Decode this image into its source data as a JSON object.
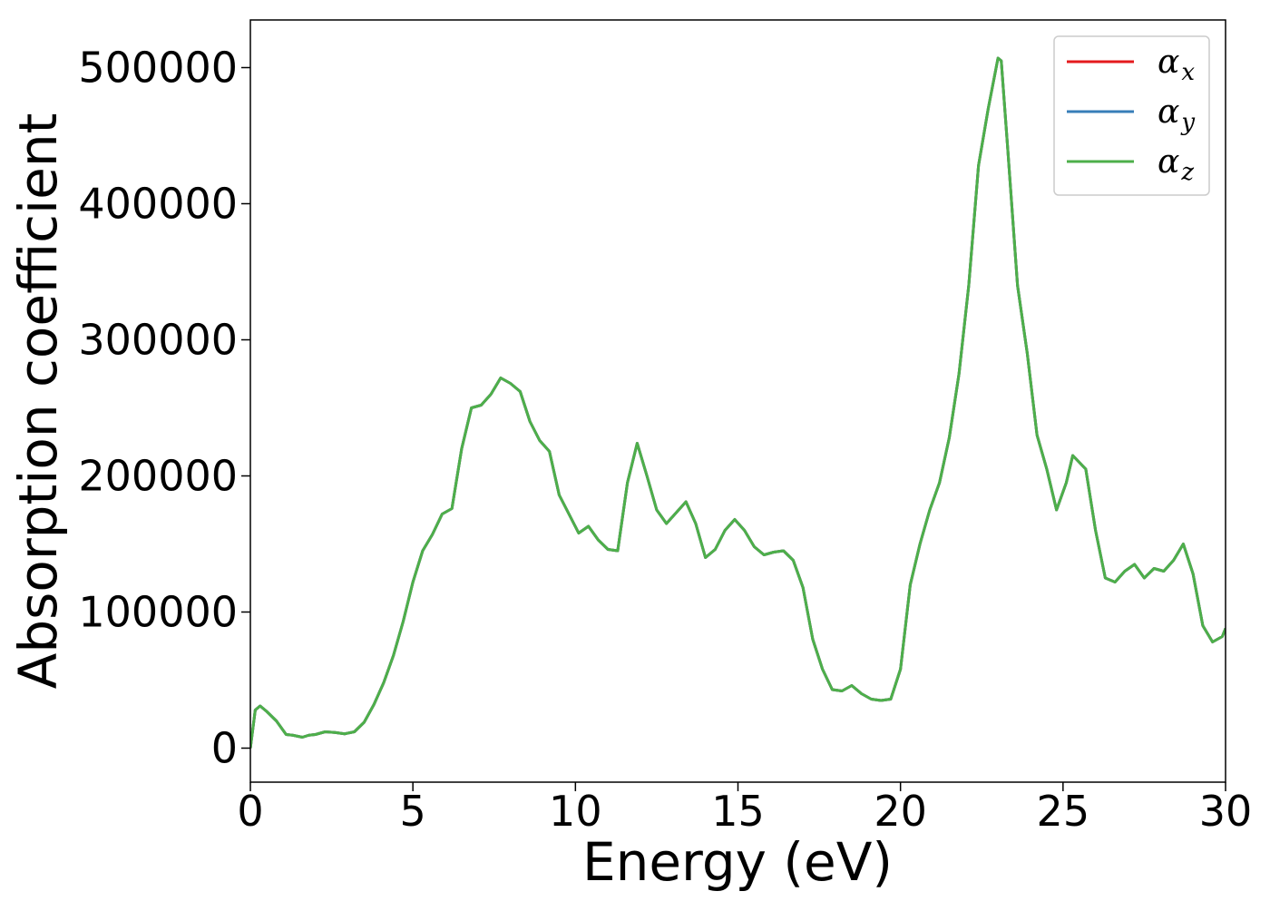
{
  "chart_data": {
    "type": "line",
    "title": "",
    "xlabel": "Energy (eV)",
    "ylabel": "Absorption coefficient",
    "xlim": [
      0,
      30
    ],
    "ylim": [
      -25000,
      535000
    ],
    "xticks": [
      0,
      5,
      10,
      15,
      20,
      25,
      30
    ],
    "yticks": [
      0,
      100000,
      200000,
      300000,
      400000,
      500000
    ],
    "xtick_labels": [
      "0",
      "5",
      "10",
      "15",
      "20",
      "25",
      "30"
    ],
    "ytick_labels": [
      "0",
      "100000",
      "200000",
      "300000",
      "400000",
      "500000"
    ],
    "grid": false,
    "legend_position": "top-right",
    "x": [
      0,
      0.15,
      0.3,
      0.5,
      0.8,
      1.1,
      1.3,
      1.6,
      1.8,
      2.0,
      2.3,
      2.6,
      2.9,
      3.2,
      3.5,
      3.8,
      4.1,
      4.4,
      4.7,
      5.0,
      5.3,
      5.6,
      5.9,
      6.2,
      6.5,
      6.8,
      7.1,
      7.4,
      7.7,
      8.0,
      8.3,
      8.6,
      8.9,
      9.2,
      9.5,
      9.8,
      10.1,
      10.4,
      10.7,
      11.0,
      11.3,
      11.6,
      11.9,
      12.2,
      12.5,
      12.8,
      13.1,
      13.4,
      13.7,
      14.0,
      14.3,
      14.6,
      14.9,
      15.2,
      15.5,
      15.8,
      16.1,
      16.4,
      16.7,
      17.0,
      17.3,
      17.6,
      17.9,
      18.2,
      18.5,
      18.8,
      19.1,
      19.4,
      19.7,
      20.0,
      20.3,
      20.6,
      20.9,
      21.2,
      21.5,
      21.8,
      22.1,
      22.4,
      22.7,
      23.0,
      23.1,
      23.3,
      23.6,
      23.9,
      24.2,
      24.5,
      24.8,
      25.1,
      25.3,
      25.5,
      25.7,
      26.0,
      26.3,
      26.6,
      26.9,
      27.2,
      27.5,
      27.8,
      28.1,
      28.4,
      28.7,
      29.0,
      29.3,
      29.6,
      29.9,
      30.0
    ],
    "series": [
      {
        "name": "αx",
        "color": "#e41a1c",
        "y": [
          0,
          28000,
          31000,
          27000,
          20000,
          10000,
          9500,
          8000,
          9500,
          10000,
          12000,
          11500,
          10500,
          12000,
          19000,
          32000,
          48000,
          68000,
          93000,
          122000,
          145000,
          157000,
          172000,
          176000,
          220000,
          250000,
          252000,
          260000,
          272000,
          268000,
          262000,
          240000,
          226000,
          218000,
          186000,
          172000,
          158000,
          163000,
          153000,
          146000,
          145000,
          195000,
          224000,
          200000,
          175000,
          165000,
          173000,
          181000,
          165000,
          140000,
          146000,
          160000,
          168000,
          160000,
          148000,
          142000,
          144000,
          145000,
          138000,
          118000,
          80000,
          58000,
          43000,
          42000,
          46000,
          40000,
          36000,
          35000,
          36000,
          58000,
          120000,
          150000,
          175000,
          195000,
          228000,
          275000,
          340000,
          428000,
          470000,
          507000,
          505000,
          440000,
          340000,
          290000,
          230000,
          205000,
          175000,
          195000,
          215000,
          210000,
          205000,
          160000,
          125000,
          122000,
          130000,
          135000,
          125000,
          132000,
          130000,
          138000,
          150000,
          128000,
          90000,
          78000,
          82000,
          88000
        ]
      },
      {
        "name": "αy",
        "color": "#377eb8",
        "y": [
          0,
          28000,
          31000,
          27000,
          20000,
          10000,
          9500,
          8000,
          9500,
          10000,
          12000,
          11500,
          10500,
          12000,
          19000,
          32000,
          48000,
          68000,
          93000,
          122000,
          145000,
          157000,
          172000,
          176000,
          220000,
          250000,
          252000,
          260000,
          272000,
          268000,
          262000,
          240000,
          226000,
          218000,
          186000,
          172000,
          158000,
          163000,
          153000,
          146000,
          145000,
          195000,
          224000,
          200000,
          175000,
          165000,
          173000,
          181000,
          165000,
          140000,
          146000,
          160000,
          168000,
          160000,
          148000,
          142000,
          144000,
          145000,
          138000,
          118000,
          80000,
          58000,
          43000,
          42000,
          46000,
          40000,
          36000,
          35000,
          36000,
          58000,
          120000,
          150000,
          175000,
          195000,
          228000,
          275000,
          340000,
          428000,
          470000,
          507000,
          505000,
          440000,
          340000,
          290000,
          230000,
          205000,
          175000,
          195000,
          215000,
          210000,
          205000,
          160000,
          125000,
          122000,
          130000,
          135000,
          125000,
          132000,
          130000,
          138000,
          150000,
          128000,
          90000,
          78000,
          82000,
          88000
        ]
      },
      {
        "name": "αz",
        "color": "#4daf4a",
        "y": [
          0,
          28000,
          31000,
          27000,
          20000,
          10000,
          9500,
          8000,
          9500,
          10000,
          12000,
          11500,
          10500,
          12000,
          19000,
          32000,
          48000,
          68000,
          93000,
          122000,
          145000,
          157000,
          172000,
          176000,
          220000,
          250000,
          252000,
          260000,
          272000,
          268000,
          262000,
          240000,
          226000,
          218000,
          186000,
          172000,
          158000,
          163000,
          153000,
          146000,
          145000,
          195000,
          224000,
          200000,
          175000,
          165000,
          173000,
          181000,
          165000,
          140000,
          146000,
          160000,
          168000,
          160000,
          148000,
          142000,
          144000,
          145000,
          138000,
          118000,
          80000,
          58000,
          43000,
          42000,
          46000,
          40000,
          36000,
          35000,
          36000,
          58000,
          120000,
          150000,
          175000,
          195000,
          228000,
          275000,
          340000,
          428000,
          470000,
          507000,
          505000,
          440000,
          340000,
          290000,
          230000,
          205000,
          175000,
          195000,
          215000,
          210000,
          205000,
          160000,
          125000,
          122000,
          130000,
          135000,
          125000,
          132000,
          130000,
          138000,
          150000,
          128000,
          90000,
          78000,
          82000,
          88000
        ]
      }
    ],
    "legend": [
      {
        "symbol": "α",
        "subscript": "x",
        "color": "#e41a1c"
      },
      {
        "symbol": "α",
        "subscript": "y",
        "color": "#377eb8"
      },
      {
        "symbol": "α",
        "subscript": "z",
        "color": "#4daf4a"
      }
    ]
  }
}
